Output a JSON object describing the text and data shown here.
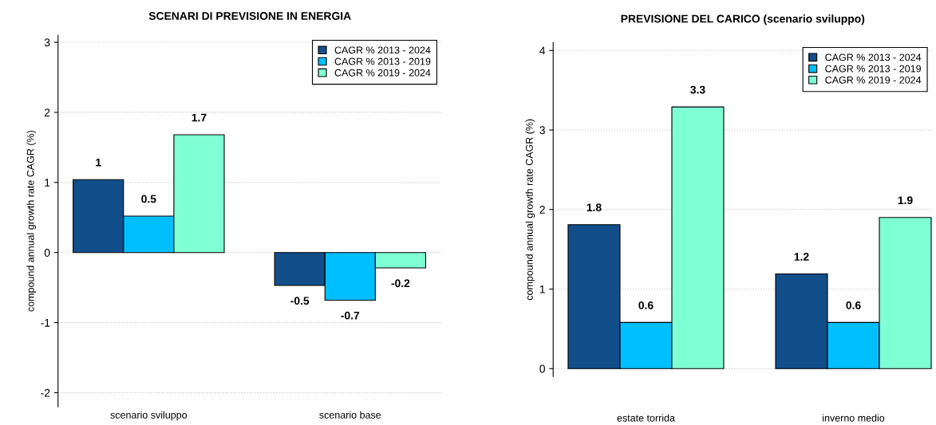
{
  "chart_data": [
    {
      "type": "bar",
      "title": "SCENARI DI PREVISIONE IN ENERGIA",
      "ylabel": "compound annual growth rate CAGR (%)",
      "categories": [
        "scenario sviluppo",
        "scenario base"
      ],
      "ylim": [
        -2.2,
        3.1
      ],
      "yticks": [
        -2,
        -1,
        0,
        1,
        2,
        3
      ],
      "grid": "y",
      "legend": "top right",
      "series": [
        {
          "name": "CAGR % 2013 - 2024",
          "color": "#114e8a",
          "values": [
            1.04,
            -0.47
          ],
          "value_labels": [
            "1",
            "-0.5"
          ]
        },
        {
          "name": "CAGR % 2013 - 2019",
          "color": "#00bfff",
          "values": [
            0.52,
            -0.68
          ],
          "value_labels": [
            "0.5",
            "-0.7"
          ]
        },
        {
          "name": "CAGR % 2019 - 2024",
          "color": "#7fffd4",
          "values": [
            1.68,
            -0.22
          ],
          "value_labels": [
            "1.7",
            "-0.2"
          ]
        }
      ]
    },
    {
      "type": "bar",
      "title": "PREVISIONE DEL CARICO (scenario sviluppo)",
      "ylabel": "compound annual growth rate CAGR (%)",
      "categories": [
        "estate torrida",
        "inverno medio"
      ],
      "ylim": [
        -0.1,
        4.1
      ],
      "yticks": [
        0,
        1,
        2,
        3,
        4
      ],
      "grid": "y",
      "legend": "top right",
      "series": [
        {
          "name": "CAGR % 2013 - 2024",
          "color": "#114e8a",
          "values": [
            1.81,
            1.19
          ],
          "value_labels": [
            "1.8",
            "1.2"
          ]
        },
        {
          "name": "CAGR % 2013 - 2019",
          "color": "#00bfff",
          "values": [
            0.58,
            0.58
          ],
          "value_labels": [
            "0.6",
            "0.6"
          ]
        },
        {
          "name": "CAGR % 2019 - 2024",
          "color": "#7fffd4",
          "values": [
            3.29,
            1.9
          ],
          "value_labels": [
            "3.3",
            "1.9"
          ]
        }
      ]
    }
  ]
}
